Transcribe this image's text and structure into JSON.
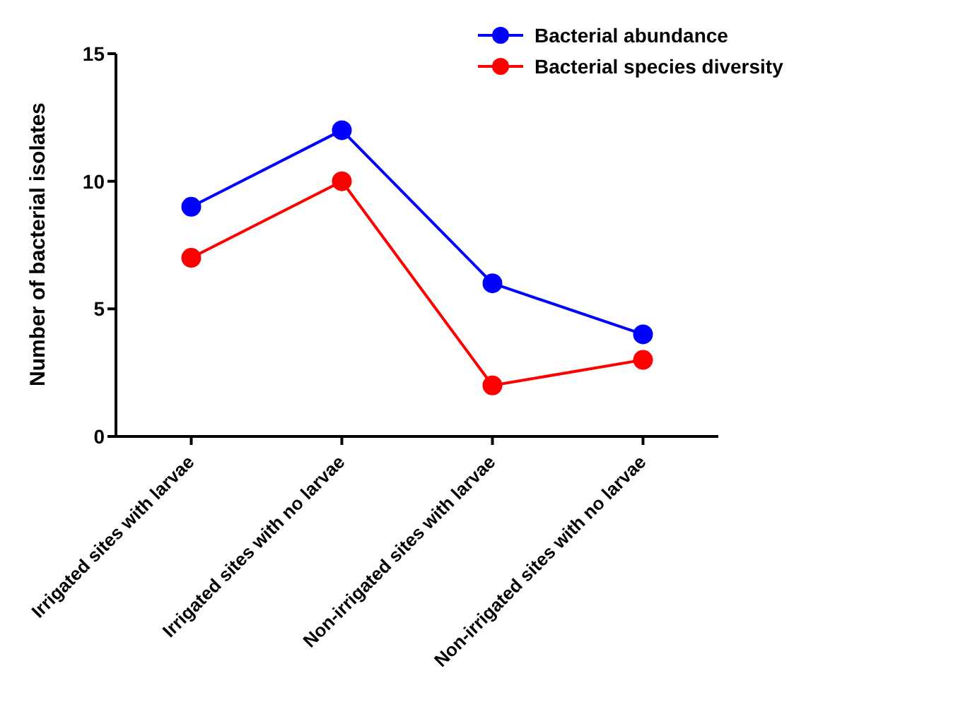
{
  "chart_data": {
    "type": "line",
    "ylabel": "Number of bacterial isolates",
    "categories": [
      "Irrigated sites with larvae",
      "Irrigated sites with no larvae",
      "Non-irrigated sites with larvae",
      "Non-irrigated sites with no larvae"
    ],
    "series": [
      {
        "name": "Bacterial abundance",
        "color": "#0000ff",
        "values": [
          9,
          12,
          6,
          4
        ]
      },
      {
        "name": "Bacterial species diversity",
        "color": "#ff0000",
        "values": [
          7,
          10,
          2,
          3
        ]
      }
    ],
    "ylim": [
      0,
      15
    ],
    "yticks": [
      0,
      5,
      10,
      15
    ],
    "grid": false,
    "legend": "top right",
    "marker": "circle",
    "line_style": "solid"
  }
}
